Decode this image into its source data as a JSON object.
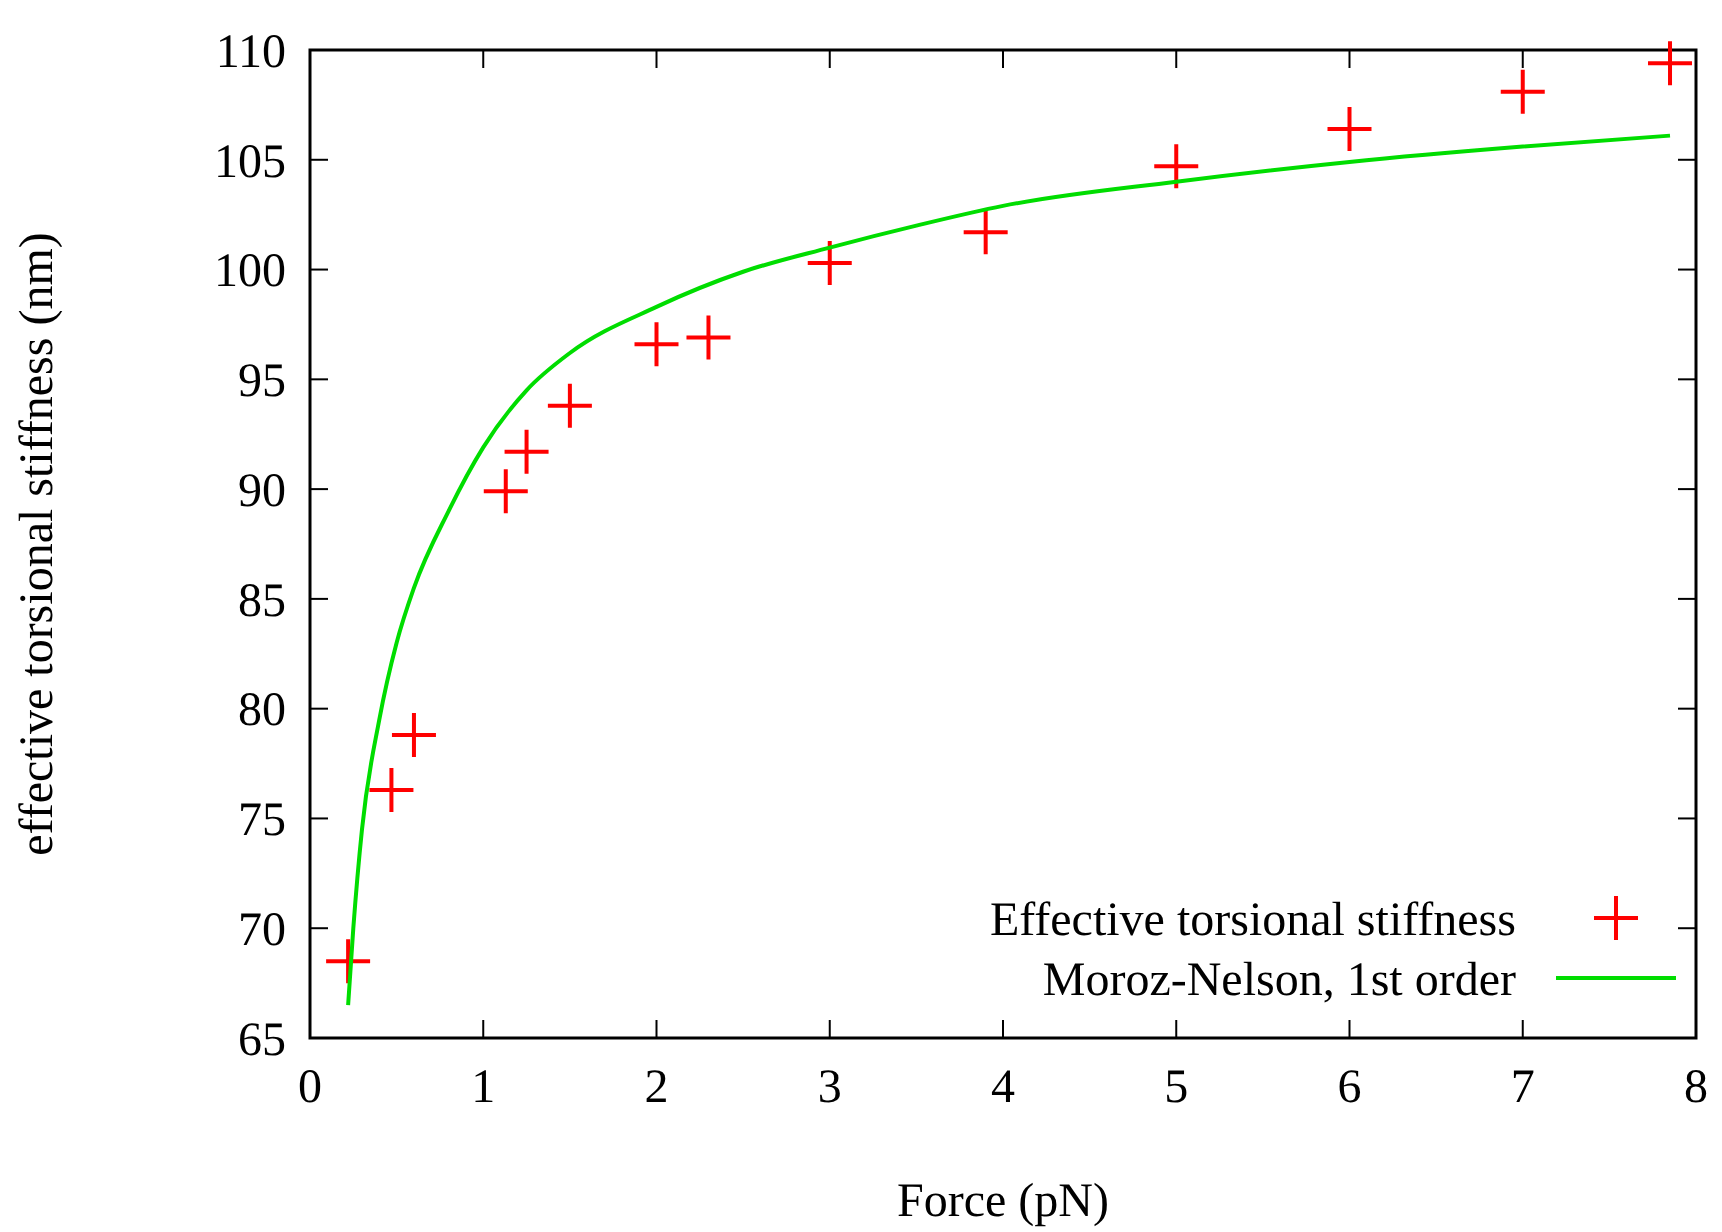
{
  "chart_data": {
    "type": "scatter",
    "xlabel": "Force (pN)",
    "ylabel": "effective torsional stiffness (nm)",
    "xlim": [
      0,
      8
    ],
    "xticks": [
      0,
      1,
      2,
      3,
      4,
      5,
      6,
      7,
      8
    ],
    "ylim": [
      65,
      110
    ],
    "yticks": [
      65,
      70,
      75,
      80,
      85,
      90,
      95,
      100,
      105,
      110
    ],
    "grid": false,
    "legend": "bottom right",
    "series": [
      {
        "name": "Effective torsional stiffness",
        "marker": "cross",
        "color": "#ff0000",
        "x": [
          0.22,
          0.47,
          0.6,
          1.13,
          1.25,
          1.5,
          2.0,
          2.3,
          3.0,
          3.9,
          5.0,
          6.0,
          7.0,
          7.85
        ],
        "values": [
          68.5,
          76.3,
          78.8,
          89.9,
          91.7,
          93.8,
          96.6,
          96.9,
          100.3,
          101.7,
          104.7,
          106.4,
          108.1,
          109.4
        ]
      },
      {
        "name": "Moroz-Nelson, 1st order",
        "type": "line",
        "marker": "none",
        "line_style": "solid",
        "color": "#00dd00",
        "x": [
          0.22,
          0.25,
          0.3,
          0.4,
          0.5,
          0.6,
          0.8,
          1,
          1.25,
          1.5,
          2,
          2.5,
          3,
          3.5,
          4,
          5,
          6,
          7,
          7.85
        ],
        "values": [
          66.5,
          70,
          74.5,
          79.5,
          83,
          85.5,
          89,
          91.9,
          94.5,
          96.2,
          98.3,
          99.9,
          101,
          102,
          102.9,
          104,
          104.9,
          105.6,
          106.1
        ]
      }
    ]
  }
}
